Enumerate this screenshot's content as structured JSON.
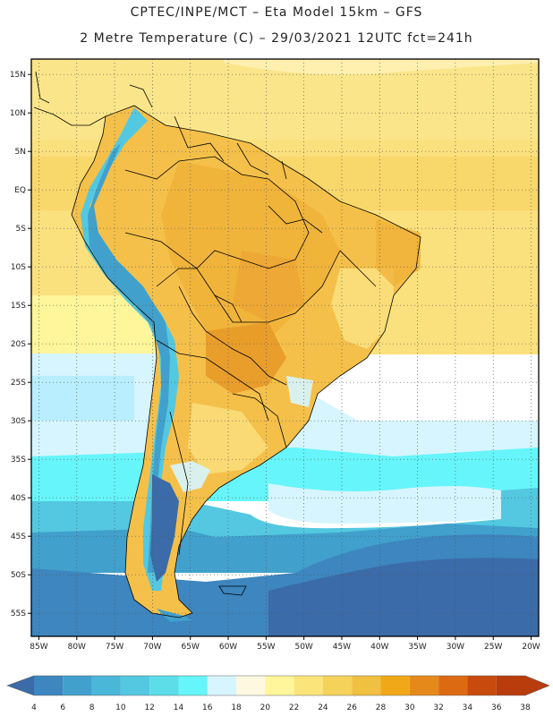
{
  "header": {
    "line1": "CPTEC/INPE/MCT –  Eta Model 15km – GFS",
    "line2": "2 Metre Temperature (C) – 29/03/2021 12UTC fct=241h"
  },
  "map": {
    "lat_labels": [
      "15N",
      "10N",
      "5N",
      "EQ",
      "5S",
      "10S",
      "15S",
      "20S",
      "25S",
      "30S",
      "35S",
      "40S",
      "45S",
      "50S",
      "55S"
    ],
    "lon_labels": [
      "85W",
      "80W",
      "75W",
      "70W",
      "65W",
      "60W",
      "55W",
      "50W",
      "45W",
      "40W",
      "35W",
      "30W",
      "25W",
      "20W"
    ],
    "extent": {
      "west": -86,
      "east": -19,
      "north": 17,
      "south": -58
    }
  },
  "colorbar": {
    "ticks": [
      "4",
      "6",
      "8",
      "10",
      "12",
      "14",
      "16",
      "18",
      "20",
      "22",
      "24",
      "26",
      "28",
      "30",
      "32",
      "34",
      "36",
      "38"
    ],
    "colors": [
      "#3b6ba8",
      "#3d86bf",
      "#41a0cc",
      "#4ab7d8",
      "#53c8e0",
      "#5cdde8",
      "#66f5fa",
      "#d6f5ff",
      "#fff8e0",
      "#fff59a",
      "#fbe47a",
      "#f5d25a",
      "#f0c040",
      "#f0a818",
      "#e58a1a",
      "#dc6a12",
      "#c84a0c",
      "#b83c0c"
    ]
  }
}
